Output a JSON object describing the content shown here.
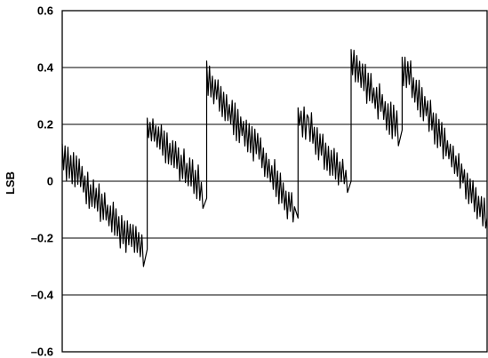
{
  "chart_data": {
    "type": "line",
    "title": "",
    "xlabel": "",
    "ylabel": "LSB",
    "ylim": [
      -0.6,
      0.6
    ],
    "xlim": [
      0,
      100
    ],
    "yticks": [
      0.6,
      0.4,
      0.2,
      0,
      -0.2,
      -0.4,
      -0.6
    ],
    "ytick_labels": [
      "0.6",
      "0.4",
      "0.2",
      "0",
      "–0.2",
      "–0.4",
      "–0.6"
    ],
    "grid": true,
    "series": [
      {
        "color": "#000000",
        "description_points": [
          {
            "x": 0.0,
            "y": 0.08
          },
          {
            "x": 2.0,
            "y": 0.06
          },
          {
            "x": 4.0,
            "y": 0.02
          },
          {
            "x": 6.0,
            "y": -0.03
          },
          {
            "x": 8.0,
            "y": -0.06
          },
          {
            "x": 10.0,
            "y": -0.1
          },
          {
            "x": 12.0,
            "y": -0.14
          },
          {
            "x": 14.0,
            "y": -0.18
          },
          {
            "x": 16.0,
            "y": -0.2
          },
          {
            "x": 18.0,
            "y": -0.22
          },
          {
            "x": 19.5,
            "y": -0.24
          },
          {
            "x": 20.0,
            "y": 0.18
          },
          {
            "x": 22.0,
            "y": 0.16
          },
          {
            "x": 24.0,
            "y": 0.13
          },
          {
            "x": 26.0,
            "y": 0.1
          },
          {
            "x": 28.0,
            "y": 0.06
          },
          {
            "x": 30.0,
            "y": 0.03
          },
          {
            "x": 32.0,
            "y": -0.01
          },
          {
            "x": 33.5,
            "y": -0.06
          },
          {
            "x": 34.0,
            "y": 0.37
          },
          {
            "x": 36.0,
            "y": 0.33
          },
          {
            "x": 38.0,
            "y": 0.28
          },
          {
            "x": 40.0,
            "y": 0.23
          },
          {
            "x": 42.0,
            "y": 0.19
          },
          {
            "x": 44.0,
            "y": 0.15
          },
          {
            "x": 46.0,
            "y": 0.12
          },
          {
            "x": 48.0,
            "y": 0.06
          },
          {
            "x": 50.0,
            "y": 0.01
          },
          {
            "x": 52.0,
            "y": -0.05
          },
          {
            "x": 54.0,
            "y": -0.09
          },
          {
            "x": 55.0,
            "y": -0.13
          },
          {
            "x": 55.5,
            "y": 0.23
          },
          {
            "x": 58.0,
            "y": 0.19
          },
          {
            "x": 60.0,
            "y": 0.15
          },
          {
            "x": 62.0,
            "y": 0.1
          },
          {
            "x": 64.0,
            "y": 0.06
          },
          {
            "x": 66.0,
            "y": 0.02
          },
          {
            "x": 67.5,
            "y": 0.0
          },
          {
            "x": 68.0,
            "y": 0.42
          },
          {
            "x": 70.0,
            "y": 0.38
          },
          {
            "x": 72.0,
            "y": 0.33
          },
          {
            "x": 74.0,
            "y": 0.29
          },
          {
            "x": 76.0,
            "y": 0.25
          },
          {
            "x": 78.0,
            "y": 0.21
          },
          {
            "x": 79.5,
            "y": 0.18
          },
          {
            "x": 80.0,
            "y": 0.4
          },
          {
            "x": 82.0,
            "y": 0.36
          },
          {
            "x": 84.0,
            "y": 0.3
          },
          {
            "x": 86.0,
            "y": 0.25
          },
          {
            "x": 88.0,
            "y": 0.18
          },
          {
            "x": 90.0,
            "y": 0.13
          },
          {
            "x": 92.0,
            "y": 0.08
          },
          {
            "x": 94.0,
            "y": 0.03
          },
          {
            "x": 96.0,
            "y": -0.04
          },
          {
            "x": 98.0,
            "y": -0.09
          },
          {
            "x": 100.0,
            "y": -0.13
          }
        ],
        "noise_amplitude": 0.05
      }
    ]
  }
}
